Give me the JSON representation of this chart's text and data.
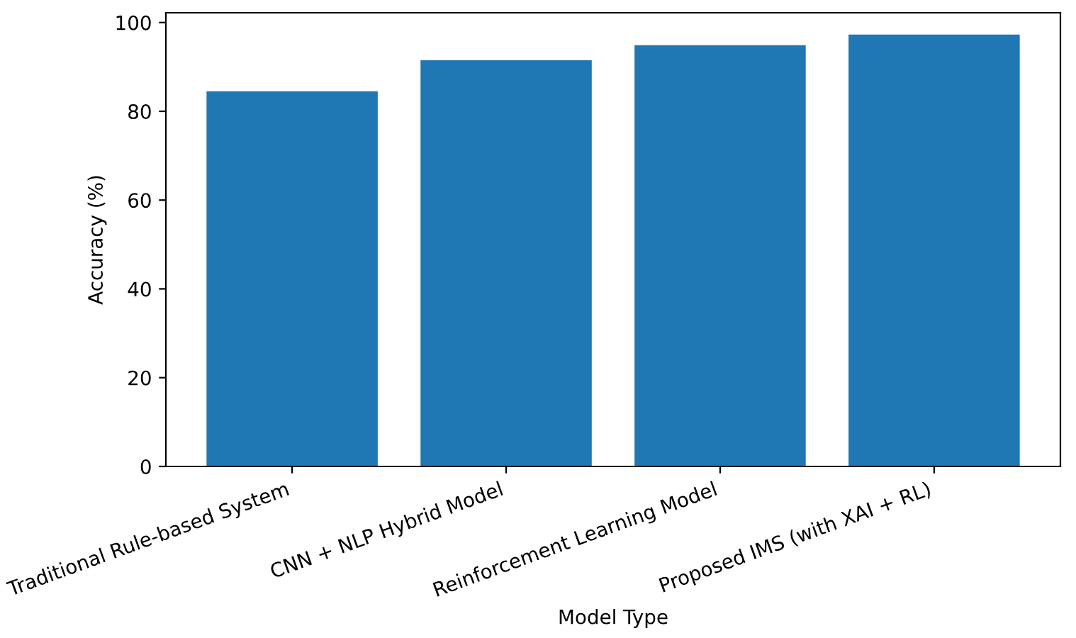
{
  "chart_data": {
    "type": "bar",
    "xlabel": "Model Type",
    "ylabel": "Accuracy (%)",
    "categories": [
      "Traditional Rule-based System",
      "CNN + NLP Hybrid Model",
      "Reinforcement Learning Model",
      "Proposed IMS (with XAI + RL)"
    ],
    "values": [
      84.5,
      91.5,
      94.9,
      97.3
    ],
    "color": "#1f77b4",
    "ylim": [
      0,
      102.2
    ],
    "yticks": [
      0,
      20,
      40,
      60,
      80,
      100
    ],
    "grid": false
  }
}
